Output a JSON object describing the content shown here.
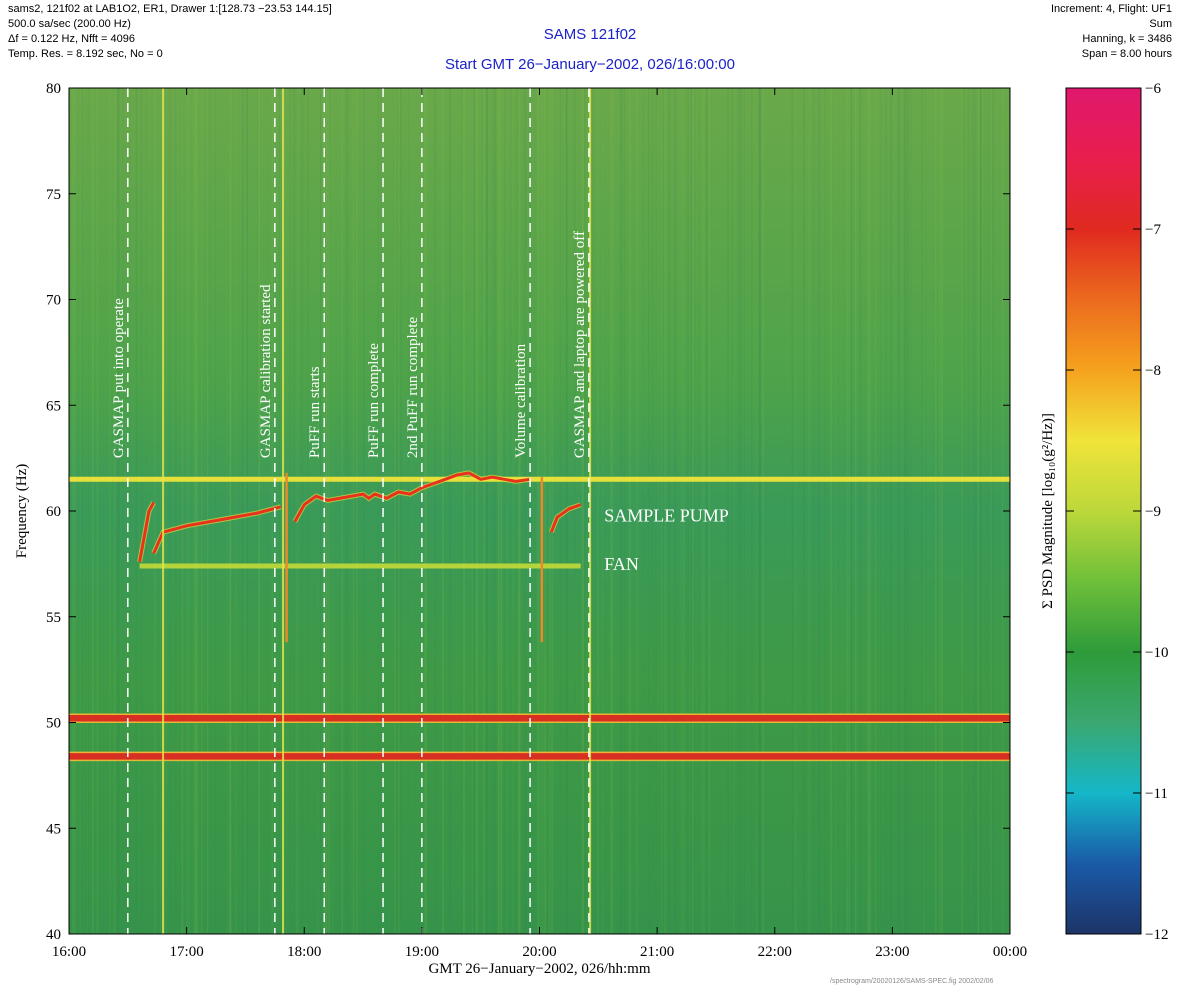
{
  "header_left": {
    "line1": "sams2, 121f02 at LAB1O2, ER1, Drawer 1:[128.73 −23.53 144.15]",
    "line2": "500.0 sa/sec (200.00 Hz)",
    "line3": "Δf = 0.122 Hz,  Nfft = 4096",
    "line4": "Temp. Res. = 8.192 sec, No = 0"
  },
  "header_right": {
    "line1": "Increment: 4, Flight: UF1",
    "line2": "Sum",
    "line3": "Hanning, k = 3486",
    "line4": "Span = 8.00 hours"
  },
  "title": "SAMS 121f02",
  "subtitle": "Start GMT 26−January−2002, 026/16:00:00",
  "footnote": "/spectrogram/20020126/SAMS-SPEC.fig  2002/02/06",
  "colors": {
    "title": "#1a22c8",
    "background_green": "#3a9b3c",
    "red_line": "#e8321e",
    "yellow_line": "#e4e650"
  },
  "chart_data": {
    "type": "heatmap",
    "xlabel": "GMT 26−January−2002, 026/hh:mm",
    "ylabel": "Frequency (Hz)",
    "xlim_hours": [
      16,
      24
    ],
    "ylim": [
      40,
      80
    ],
    "x_ticks": [
      {
        "value": 16,
        "label": "16:00"
      },
      {
        "value": 17,
        "label": "17:00"
      },
      {
        "value": 18,
        "label": "18:00"
      },
      {
        "value": 19,
        "label": "19:00"
      },
      {
        "value": 20,
        "label": "20:00"
      },
      {
        "value": 21,
        "label": "21:00"
      },
      {
        "value": 22,
        "label": "22:00"
      },
      {
        "value": 23,
        "label": "23:00"
      },
      {
        "value": 24,
        "label": "00:00"
      }
    ],
    "y_ticks": [
      {
        "value": 40,
        "label": "40"
      },
      {
        "value": 45,
        "label": "45"
      },
      {
        "value": 50,
        "label": "50"
      },
      {
        "value": 55,
        "label": "55"
      },
      {
        "value": 60,
        "label": "60"
      },
      {
        "value": 65,
        "label": "65"
      },
      {
        "value": 70,
        "label": "70"
      },
      {
        "value": 75,
        "label": "75"
      },
      {
        "value": 80,
        "label": "80"
      }
    ],
    "colorbar": {
      "label": "Σ PSD Magnitude [log₁₀(g²/Hz)]",
      "range": [
        -12,
        -6
      ],
      "ticks": [
        {
          "value": -6,
          "label": "−6"
        },
        {
          "value": -7,
          "label": "−7"
        },
        {
          "value": -8,
          "label": "−8"
        },
        {
          "value": -9,
          "label": "−9"
        },
        {
          "value": -10,
          "label": "−10"
        },
        {
          "value": -11,
          "label": "−11"
        },
        {
          "value": -12,
          "label": "−12"
        }
      ],
      "stops": [
        {
          "v": -12,
          "color": "#1d3467"
        },
        {
          "v": -11.5,
          "color": "#1a5aa8"
        },
        {
          "v": -11,
          "color": "#15b7c8"
        },
        {
          "v": -10.5,
          "color": "#3aa870"
        },
        {
          "v": -10,
          "color": "#2e9b3a"
        },
        {
          "v": -9.5,
          "color": "#6fbf3a"
        },
        {
          "v": -9,
          "color": "#bcd83a"
        },
        {
          "v": -8.5,
          "color": "#f0e43a"
        },
        {
          "v": -8,
          "color": "#f5a21e"
        },
        {
          "v": -7.5,
          "color": "#ec6a1e"
        },
        {
          "v": -7,
          "color": "#e02a20"
        },
        {
          "v": -6.5,
          "color": "#e81e4e"
        },
        {
          "v": -6,
          "color": "#e0186e"
        }
      ]
    },
    "horizontal_lines": [
      {
        "freq": 61.5,
        "start": 16,
        "end": 24,
        "level": -8.6
      },
      {
        "freq": 57.4,
        "start": 16.6,
        "end": 20.35,
        "level": -9.0
      },
      {
        "freq": 50.2,
        "start": 16,
        "end": 24,
        "level": -7.0
      },
      {
        "freq": 48.4,
        "start": 16,
        "end": 24,
        "level": -7.2
      }
    ],
    "sample_pump_segments": [
      [
        [
          16.6,
          57.6
        ],
        [
          16.68,
          60.0
        ],
        [
          16.72,
          60.4
        ]
      ],
      [
        [
          16.72,
          58.0
        ],
        [
          16.8,
          59.0
        ],
        [
          17.0,
          59.3
        ],
        [
          17.3,
          59.6
        ],
        [
          17.6,
          59.9
        ],
        [
          17.8,
          60.2
        ]
      ],
      [
        [
          17.92,
          59.5
        ],
        [
          18.0,
          60.3
        ],
        [
          18.1,
          60.7
        ],
        [
          18.2,
          60.5
        ],
        [
          18.4,
          60.7
        ],
        [
          18.5,
          60.8
        ],
        [
          18.55,
          60.6
        ],
        [
          18.6,
          60.8
        ],
        [
          18.7,
          60.6
        ],
        [
          18.8,
          60.9
        ],
        [
          18.9,
          60.8
        ],
        [
          19.0,
          61.1
        ],
        [
          19.1,
          61.3
        ],
        [
          19.2,
          61.5
        ],
        [
          19.3,
          61.7
        ],
        [
          19.4,
          61.8
        ],
        [
          19.5,
          61.5
        ],
        [
          19.6,
          61.6
        ],
        [
          19.7,
          61.5
        ],
        [
          19.8,
          61.4
        ],
        [
          19.92,
          61.5
        ]
      ],
      [
        [
          20.1,
          59.0
        ],
        [
          20.15,
          59.7
        ],
        [
          20.25,
          60.1
        ],
        [
          20.35,
          60.3
        ]
      ]
    ],
    "dips": [
      {
        "x": 17.85,
        "from": 61.8,
        "to": 53.8
      },
      {
        "x": 20.02,
        "from": 61.6,
        "to": 53.8
      }
    ],
    "vertical_lines": [
      16.8,
      17.82,
      20.43
    ],
    "events": [
      {
        "time": 16.5,
        "label": "GASMAP put into operate"
      },
      {
        "time": 17.75,
        "label": "GASMAP calibration started"
      },
      {
        "time": 18.17,
        "label": "PuFF run starts"
      },
      {
        "time": 18.67,
        "label": "PuFF run complete"
      },
      {
        "time": 19.0,
        "label": "2nd PuFF run complete"
      },
      {
        "time": 19.92,
        "label": "Volume calibration"
      },
      {
        "time": 20.42,
        "label": "GASMAP and laptop are powered off"
      }
    ],
    "annotations": [
      {
        "text": "SAMPLE PUMP",
        "x": 20.55,
        "y": 59.5
      },
      {
        "text": "FAN",
        "x": 20.55,
        "y": 57.2
      }
    ]
  }
}
